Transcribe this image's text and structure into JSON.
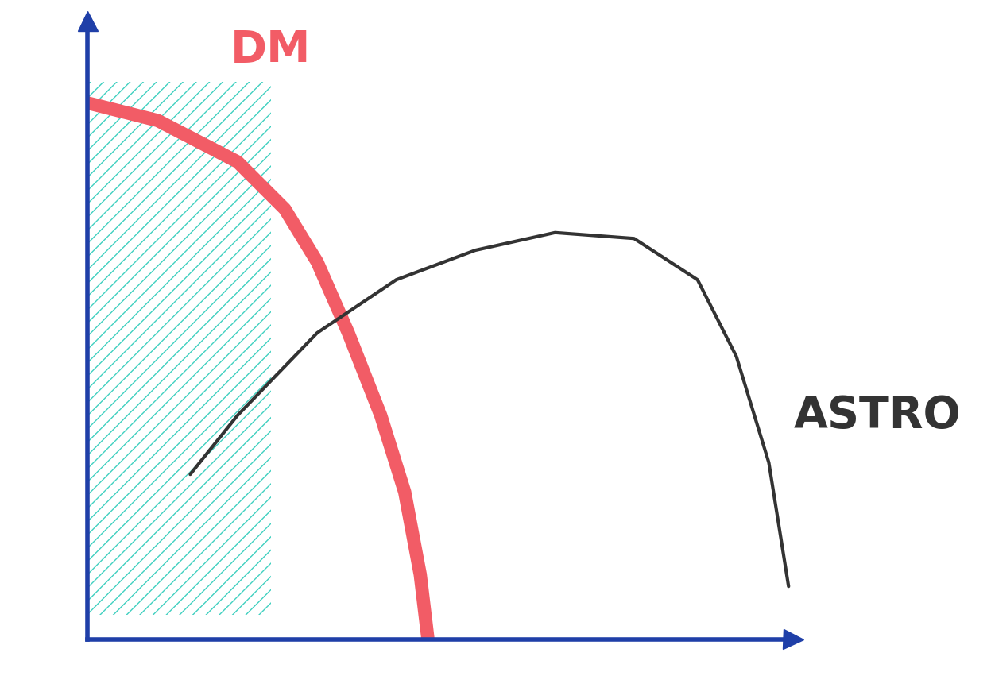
{
  "chart_data": {
    "type": "line",
    "series": [
      {
        "name": "DM",
        "color": "#f25c66",
        "x": [
          0,
          1.0,
          2.13,
          2.8,
          3.26,
          3.7,
          4.16,
          4.5,
          4.72,
          4.83
        ],
        "values": [
          9.1,
          8.8,
          8.1,
          7.3,
          6.4,
          5.2,
          3.8,
          2.5,
          1.1,
          0
        ]
      },
      {
        "name": "ASTRO",
        "color": "#333333",
        "x": [
          1.46,
          2.13,
          3.26,
          4.38,
          5.5,
          6.63,
          7.75,
          8.65,
          9.2,
          9.66,
          9.94
        ],
        "values": [
          2.8,
          3.8,
          5.2,
          6.1,
          6.6,
          6.9,
          6.8,
          6.1,
          4.8,
          3.0,
          0.9
        ]
      }
    ],
    "shaded_x": [
      0,
      2.6
    ],
    "xlim": [
      0,
      10
    ],
    "ylim": [
      0,
      10.5
    ],
    "tick_labels": false
  }
}
